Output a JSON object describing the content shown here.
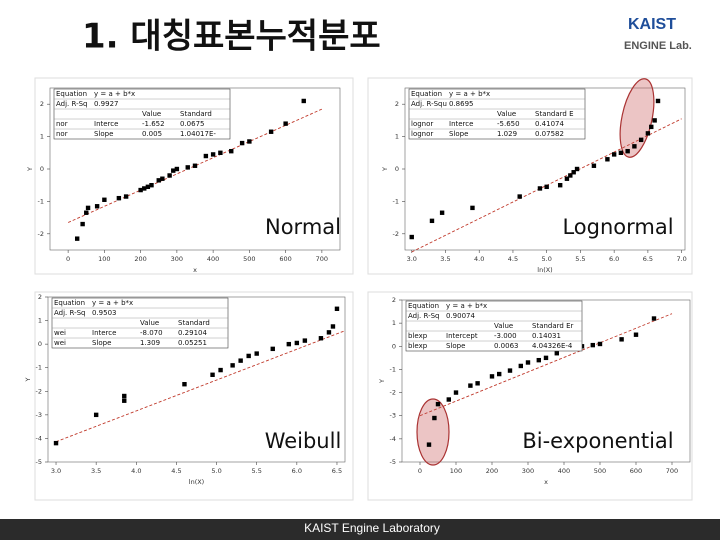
{
  "title": "1. 대칭표본누적분포",
  "logo": {
    "line1": "KAIST",
    "line2": "ENGINE Lab."
  },
  "footer": "KAIST Engine Laboratory",
  "chart_data": [
    {
      "type": "scatter",
      "label": "Normal",
      "xlabel": "x",
      "ylabel": "Y",
      "color": "#000000",
      "x": [
        25,
        40,
        50,
        55,
        80,
        100,
        140,
        160,
        200,
        210,
        220,
        230,
        250,
        260,
        280,
        290,
        300,
        330,
        350,
        380,
        400,
        420,
        450,
        480,
        500,
        560,
        600,
        650
      ],
      "values": [
        -2.15,
        -1.7,
        -1.35,
        -1.2,
        -1.15,
        -0.95,
        -0.9,
        -0.85,
        -0.65,
        -0.6,
        -0.55,
        -0.5,
        -0.35,
        -0.3,
        -0.2,
        -0.05,
        0,
        0.05,
        0.1,
        0.4,
        0.45,
        0.5,
        0.55,
        0.8,
        0.85,
        1.15,
        1.4,
        2.1
      ],
      "fit": {
        "x": [
          0,
          700
        ],
        "values": [
          -1.652,
          1.848
        ],
        "color": "#c0392b"
      },
      "xlim": [
        -50,
        750
      ],
      "xticks": [
        0,
        100,
        200,
        300,
        400,
        500,
        600,
        700
      ],
      "ylim": [
        -2.5,
        2.5
      ],
      "yticks": [
        -2,
        -1,
        0,
        1,
        2
      ],
      "table": {
        "equation": [
          "Equation",
          "y = a + b*x"
        ],
        "adj_r": [
          "Adj. R-Sq",
          "0.9927"
        ],
        "columns": [
          "Value",
          "Standard"
        ],
        "rows": [
          [
            "nor",
            "Interce",
            "-1.652",
            "0.0675"
          ],
          [
            "nor",
            "Slope",
            "0.005",
            "1.04017E-"
          ]
        ]
      }
    },
    {
      "type": "scatter",
      "label": "Lognormal",
      "xlabel": "ln(X)",
      "ylabel": "Y",
      "color": "#000000",
      "highlight": "upper-right",
      "x": [
        3.0,
        3.3,
        3.45,
        3.9,
        4.6,
        4.9,
        5.0,
        5.2,
        5.3,
        5.35,
        5.4,
        5.45,
        5.7,
        5.9,
        6.0,
        6.1,
        6.2,
        6.3,
        6.4,
        6.5,
        6.55,
        6.6,
        6.65
      ],
      "values": [
        -2.1,
        -1.6,
        -1.35,
        -1.2,
        -0.85,
        -0.6,
        -0.55,
        -0.5,
        -0.3,
        -0.2,
        -0.1,
        0,
        0.1,
        0.3,
        0.45,
        0.5,
        0.55,
        0.7,
        0.9,
        1.1,
        1.3,
        1.5,
        2.1
      ],
      "fit": {
        "x": [
          3.0,
          7.0
        ],
        "values": [
          -2.56,
          1.55
        ],
        "color": "#c0392b"
      },
      "xlim": [
        2.9,
        7.05
      ],
      "xticks": [
        {
          "value": 3,
          "label": "3.0"
        },
        {
          "value": 3.5,
          "label": "3.5"
        },
        {
          "value": 4,
          "label": "4.0"
        },
        {
          "value": 4.5,
          "label": "4.5"
        },
        {
          "value": 5,
          "label": "5.0"
        },
        {
          "value": 5.5,
          "label": "5.5"
        },
        {
          "value": 6,
          "label": "6.0"
        },
        {
          "value": 6.5,
          "label": "6.5"
        },
        {
          "value": 7,
          "label": "7.0"
        }
      ],
      "ylim": [
        -2.5,
        2.5
      ],
      "yticks": [
        -2,
        -1,
        0,
        1,
        2
      ],
      "table": {
        "equation": [
          "Equation",
          "y = a + b*x"
        ],
        "adj_r": [
          "Adj. R-Squ",
          "0.8695"
        ],
        "columns": [
          "Value",
          "Standard E"
        ],
        "rows": [
          [
            "lognor",
            "Interce",
            "-5.650",
            "0.41074"
          ],
          [
            "lognor",
            "Slope",
            "1.029",
            "0.07582"
          ]
        ]
      }
    },
    {
      "type": "scatter",
      "label": "Weibull",
      "xlabel": "ln(X)",
      "ylabel": "Y",
      "color": "#000000",
      "x": [
        3.0,
        3.5,
        3.85,
        3.85,
        4.6,
        4.95,
        5.05,
        5.2,
        5.3,
        5.4,
        5.5,
        5.7,
        5.9,
        6.0,
        6.1,
        6.3,
        6.4,
        6.45,
        6.5
      ],
      "values": [
        -4.2,
        -3.0,
        -2.4,
        -2.2,
        -1.7,
        -1.3,
        -1.1,
        -0.9,
        -0.7,
        -0.5,
        -0.4,
        -0.2,
        0,
        0.05,
        0.15,
        0.25,
        0.5,
        0.75,
        1.5
      ],
      "fit": {
        "x": [
          3.0,
          6.6
        ],
        "values": [
          -4.14,
          0.57
        ],
        "color": "#c0392b"
      },
      "xlim": [
        2.9,
        6.6
      ],
      "xticks": [
        {
          "value": 3,
          "label": "3.0"
        },
        {
          "value": 3.5,
          "label": "3.5"
        },
        {
          "value": 4,
          "label": "4.0"
        },
        {
          "value": 4.5,
          "label": "4.5"
        },
        {
          "value": 5,
          "label": "5.0"
        },
        {
          "value": 5.5,
          "label": "5.5"
        },
        {
          "value": 6,
          "label": "6.0"
        },
        {
          "value": 6.5,
          "label": "6.5"
        }
      ],
      "ylim": [
        -5,
        2
      ],
      "yticks": [
        -5,
        -4,
        -3,
        -2,
        -1,
        0,
        1,
        2
      ],
      "table": {
        "equation": [
          "Equation",
          "y = a + b*x"
        ],
        "adj_r": [
          "Adj. R-Sq",
          "0.9503"
        ],
        "columns": [
          "Value",
          "Standard"
        ],
        "rows": [
          [
            "wei",
            "Interce",
            "-8.070",
            "0.29104"
          ],
          [
            "wei",
            "Slope",
            "1.309",
            "0.05251"
          ]
        ]
      }
    },
    {
      "type": "scatter",
      "label": "Bi-exponential",
      "xlabel": "x",
      "ylabel": "Y",
      "color": "#000000",
      "highlight": "lower-left",
      "x": [
        25,
        40,
        50,
        80,
        100,
        140,
        160,
        200,
        220,
        250,
        280,
        300,
        330,
        350,
        380,
        420,
        450,
        480,
        500,
        560,
        600,
        650
      ],
      "values": [
        -4.25,
        -3.1,
        -2.5,
        -2.3,
        -2.0,
        -1.7,
        -1.6,
        -1.3,
        -1.2,
        -1.05,
        -0.85,
        -0.7,
        -0.6,
        -0.5,
        -0.3,
        -0.1,
        0,
        0.05,
        0.1,
        0.3,
        0.5,
        1.2
      ],
      "fit": {
        "x": [
          0,
          700
        ],
        "values": [
          -3.0,
          1.41
        ],
        "color": "#c0392b"
      },
      "xlim": [
        -50,
        750
      ],
      "xticks": [
        0,
        100,
        200,
        300,
        400,
        500,
        600,
        700
      ],
      "ylim": [
        -5,
        2
      ],
      "yticks": [
        -5,
        -4,
        -3,
        -2,
        -1,
        0,
        1,
        2
      ],
      "table": {
        "equation": [
          "Equation",
          "y = a + b*x"
        ],
        "adj_r": [
          "Adj. R-Sq",
          "0.90074"
        ],
        "columns": [
          "Value",
          "Standard Er"
        ],
        "rows": [
          [
            "blexp",
            "Intercept",
            "-3.000",
            "0.14031"
          ],
          [
            "blexp",
            "Slope",
            "0.0063",
            "4.04326E-4"
          ]
        ]
      }
    }
  ]
}
